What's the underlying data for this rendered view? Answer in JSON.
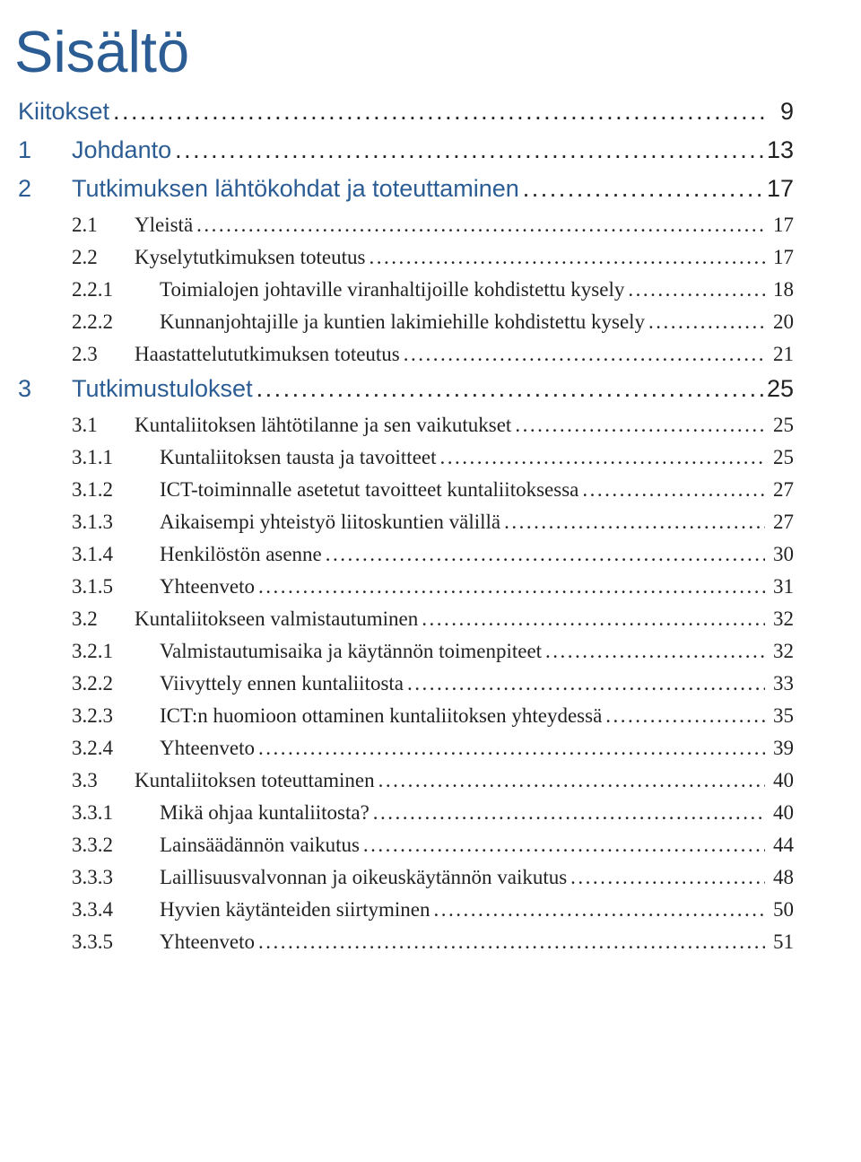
{
  "colors": {
    "heading_blue": "#2b5d94",
    "body_text": "#222222",
    "background": "#ffffff"
  },
  "typography": {
    "title_fontsize": 65,
    "section_fontsize": 27,
    "body_fontsize": 23,
    "title_family": "Optima / sans-serif light",
    "section_family": "Optima / sans-serif",
    "body_family": "Georgia / serif"
  },
  "title": "Sisältö",
  "entries": [
    {
      "level": "sec",
      "num": "",
      "text": "Kiitokset",
      "page": "9",
      "color": "blue",
      "nopre": true
    },
    {
      "level": "sec",
      "num": "1",
      "text": "Johdanto",
      "page": "13",
      "color": "blue"
    },
    {
      "level": "sec",
      "num": "2",
      "text": "Tutkimuksen lähtökohdat ja toteuttaminen",
      "page": "17",
      "color": "blue"
    },
    {
      "level": "sub1",
      "num": "2.1",
      "text": "Yleistä",
      "page": "17",
      "color": "black"
    },
    {
      "level": "sub1",
      "num": "2.2",
      "text": "Kyselytutkimuksen toteutus",
      "page": "17",
      "color": "black"
    },
    {
      "level": "sub2",
      "num": "2.2.1",
      "text": "Toimialojen johtaville viranhaltijoille kohdistettu kysely",
      "page": "18",
      "color": "black"
    },
    {
      "level": "sub2",
      "num": "2.2.2",
      "text": "Kunnanjohtajille ja kuntien lakimiehille kohdistettu kysely",
      "page": "20",
      "color": "black"
    },
    {
      "level": "sub1",
      "num": "2.3",
      "text": "Haastattelututkimuksen toteutus",
      "page": "21",
      "color": "black"
    },
    {
      "level": "sec",
      "num": "3",
      "text": "Tutkimustulokset",
      "page": "25",
      "color": "blue"
    },
    {
      "level": "sub1",
      "num": "3.1",
      "text": "Kuntaliitoksen lähtötilanne ja sen vaikutukset",
      "page": "25",
      "color": "black"
    },
    {
      "level": "sub2",
      "num": "3.1.1",
      "text": "Kuntaliitoksen tausta ja tavoitteet",
      "page": "25",
      "color": "black"
    },
    {
      "level": "sub2",
      "num": "3.1.2",
      "text": "ICT-toiminnalle asetetut tavoitteet kuntaliitoksessa",
      "page": "27",
      "color": "black"
    },
    {
      "level": "sub2",
      "num": "3.1.3",
      "text": "Aikaisempi yhteistyö liitoskuntien välillä",
      "page": "27",
      "color": "black"
    },
    {
      "level": "sub2",
      "num": "3.1.4",
      "text": "Henkilöstön asenne",
      "page": "30",
      "color": "black"
    },
    {
      "level": "sub2",
      "num": "3.1.5",
      "text": "Yhteenveto",
      "page": "31",
      "color": "black"
    },
    {
      "level": "sub1",
      "num": "3.2",
      "text": "Kuntaliitokseen valmistautuminen",
      "page": "32",
      "color": "black"
    },
    {
      "level": "sub2",
      "num": "3.2.1",
      "text": "Valmistautumisaika ja käytännön toimenpiteet",
      "page": "32",
      "color": "black"
    },
    {
      "level": "sub2",
      "num": "3.2.2",
      "text": "Viivyttely ennen kuntaliitosta",
      "page": "33",
      "color": "black"
    },
    {
      "level": "sub2",
      "num": "3.2.3",
      "text": "ICT:n huomioon ottaminen kuntaliitoksen yhteydessä",
      "page": "35",
      "color": "black"
    },
    {
      "level": "sub2",
      "num": "3.2.4",
      "text": "Yhteenveto",
      "page": "39",
      "color": "black"
    },
    {
      "level": "sub1",
      "num": "3.3",
      "text": "Kuntaliitoksen toteuttaminen",
      "page": "40",
      "color": "black"
    },
    {
      "level": "sub2",
      "num": "3.3.1",
      "text": "Mikä ohjaa kuntaliitosta?",
      "page": "40",
      "color": "black"
    },
    {
      "level": "sub2",
      "num": "3.3.2",
      "text": "Lainsäädännön vaikutus",
      "page": "44",
      "color": "black"
    },
    {
      "level": "sub2",
      "num": "3.3.3",
      "text": "Laillisuusvalvonnan ja oikeuskäytännön vaikutus",
      "page": "48",
      "color": "black"
    },
    {
      "level": "sub2",
      "num": "3.3.4",
      "text": "Hyvien käytänteiden siirtyminen",
      "page": "50",
      "color": "black"
    },
    {
      "level": "sub2",
      "num": "3.3.5",
      "text": "Yhteenveto",
      "page": "51",
      "color": "black"
    }
  ]
}
